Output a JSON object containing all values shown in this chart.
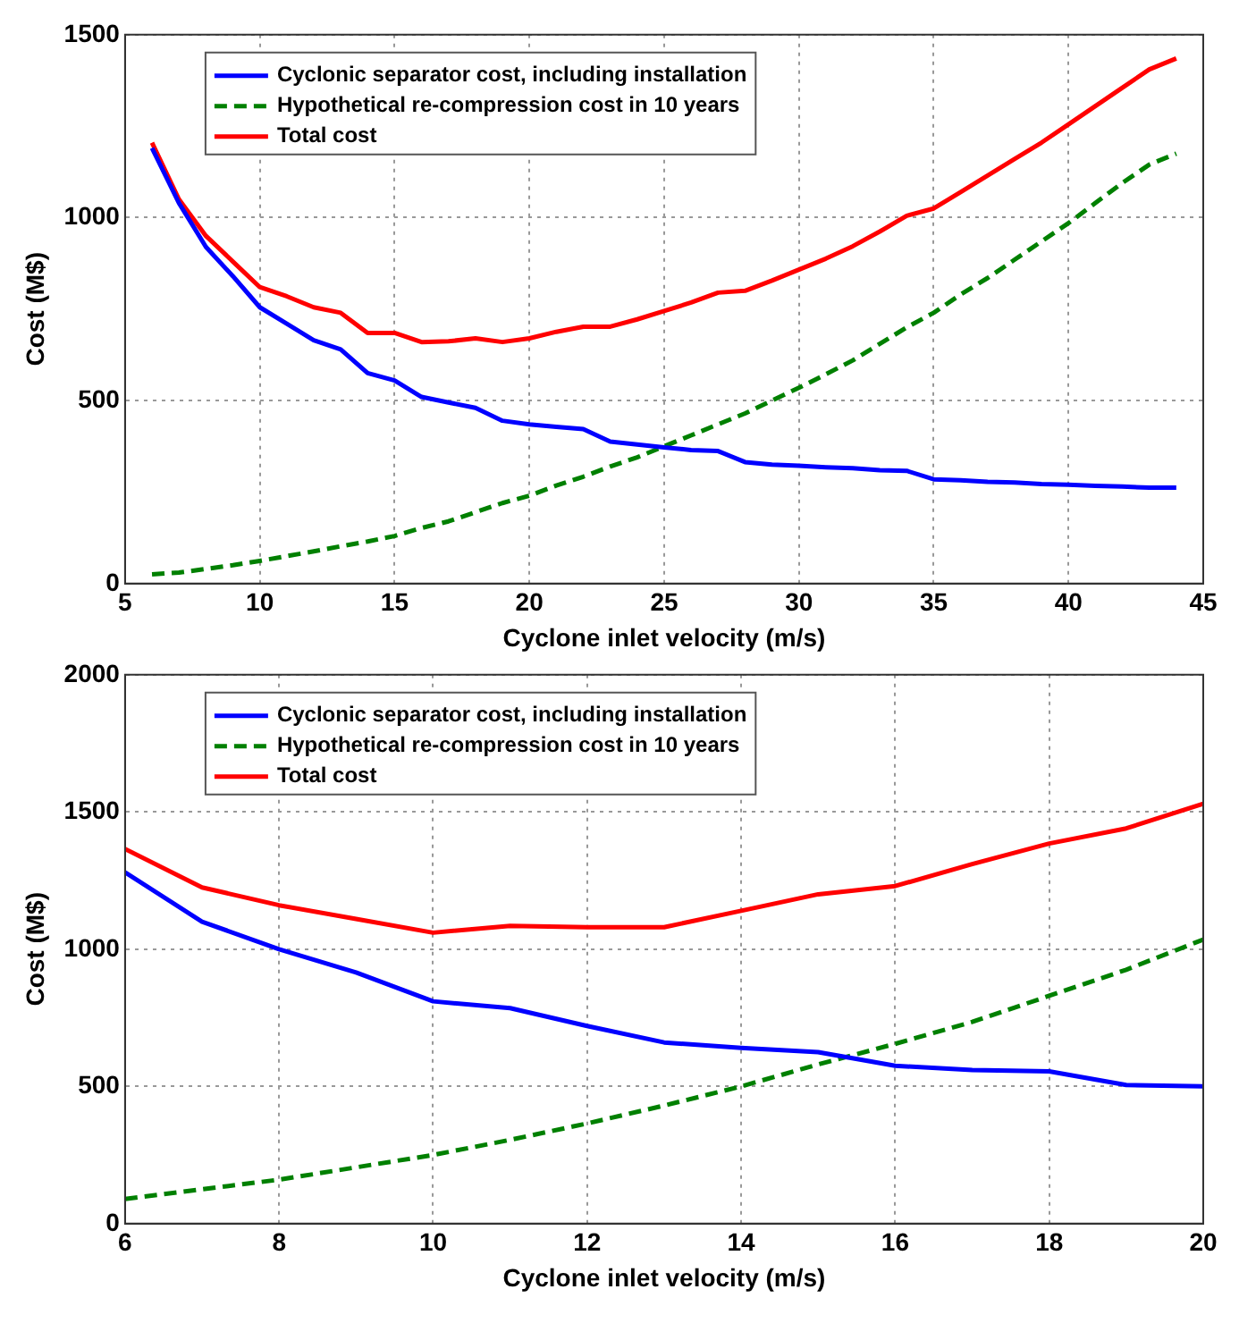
{
  "chart_data": [
    {
      "type": "line",
      "xlabel": "Cyclone inlet velocity (m/s)",
      "ylabel": "Cost (M$)",
      "x": [
        6,
        7,
        8,
        9,
        10,
        11,
        12,
        13,
        14,
        15,
        16,
        17,
        18,
        19,
        20,
        21,
        22,
        23,
        24,
        25,
        26,
        27,
        28,
        29,
        30,
        31,
        32,
        33,
        34,
        35,
        36,
        37,
        38,
        39,
        40,
        41,
        42,
        43,
        44
      ],
      "xlim": [
        5,
        45
      ],
      "xticks": [
        5,
        10,
        15,
        20,
        25,
        30,
        35,
        40,
        45
      ],
      "ylim": [
        0,
        1500
      ],
      "yticks": [
        0,
        500,
        1000,
        1500
      ],
      "grid": true,
      "legend": "top left",
      "series": [
        {
          "name": "Cyclonic separator cost, including installation",
          "color": "#0000ff",
          "line_style": "solid",
          "values": [
            1190,
            1040,
            920,
            840,
            755,
            710,
            665,
            640,
            575,
            555,
            510,
            495,
            480,
            445,
            435,
            428,
            422,
            388,
            380,
            372,
            365,
            362,
            332,
            325,
            322,
            318,
            315,
            310,
            308,
            285,
            282,
            278,
            276,
            272,
            270,
            267,
            265,
            262,
            262
          ]
        },
        {
          "name": "Hypothetical re-compression cost in 10 years",
          "color": "#008000",
          "line_style": "dashed",
          "values": [
            25,
            30,
            40,
            50,
            62,
            75,
            88,
            102,
            115,
            130,
            152,
            170,
            195,
            220,
            240,
            268,
            292,
            320,
            345,
            375,
            405,
            435,
            465,
            500,
            535,
            572,
            610,
            655,
            700,
            740,
            790,
            835,
            885,
            935,
            985,
            1040,
            1095,
            1145,
            1175
          ]
        },
        {
          "name": "Total cost",
          "color": "#ff0000",
          "line_style": "solid",
          "values": [
            1205,
            1050,
            950,
            880,
            810,
            785,
            755,
            740,
            685,
            685,
            660,
            662,
            670,
            660,
            670,
            688,
            702,
            702,
            722,
            745,
            768,
            795,
            800,
            828,
            858,
            888,
            922,
            962,
            1005,
            1025,
            1070,
            1115,
            1160,
            1205,
            1255,
            1305,
            1355,
            1405,
            1435
          ]
        }
      ]
    },
    {
      "type": "line",
      "xlabel": "Cyclone inlet velocity (m/s)",
      "ylabel": "Cost (M$)",
      "x": [
        6,
        7,
        8,
        9,
        10,
        11,
        12,
        13,
        14,
        15,
        16,
        17,
        18,
        19,
        20
      ],
      "xlim": [
        6,
        20
      ],
      "xticks": [
        6,
        8,
        10,
        12,
        14,
        16,
        18,
        20
      ],
      "ylim": [
        0,
        2000
      ],
      "yticks": [
        0,
        500,
        1000,
        1500,
        2000
      ],
      "grid": true,
      "legend": "top left",
      "series": [
        {
          "name": "Cyclonic separator cost, including installation",
          "color": "#0000ff",
          "line_style": "solid",
          "values": [
            1280,
            1100,
            1000,
            915,
            810,
            785,
            720,
            660,
            640,
            625,
            575,
            560,
            555,
            505,
            500
          ]
        },
        {
          "name": "Hypothetical re-compression cost in 10 years",
          "color": "#008000",
          "line_style": "dashed",
          "values": [
            90,
            125,
            160,
            205,
            250,
            305,
            365,
            430,
            500,
            580,
            655,
            735,
            830,
            925,
            1035
          ]
        },
        {
          "name": "Total cost",
          "color": "#ff0000",
          "line_style": "solid",
          "values": [
            1365,
            1225,
            1160,
            1110,
            1060,
            1085,
            1080,
            1080,
            1140,
            1200,
            1230,
            1310,
            1385,
            1440,
            1530
          ]
        }
      ]
    }
  ]
}
